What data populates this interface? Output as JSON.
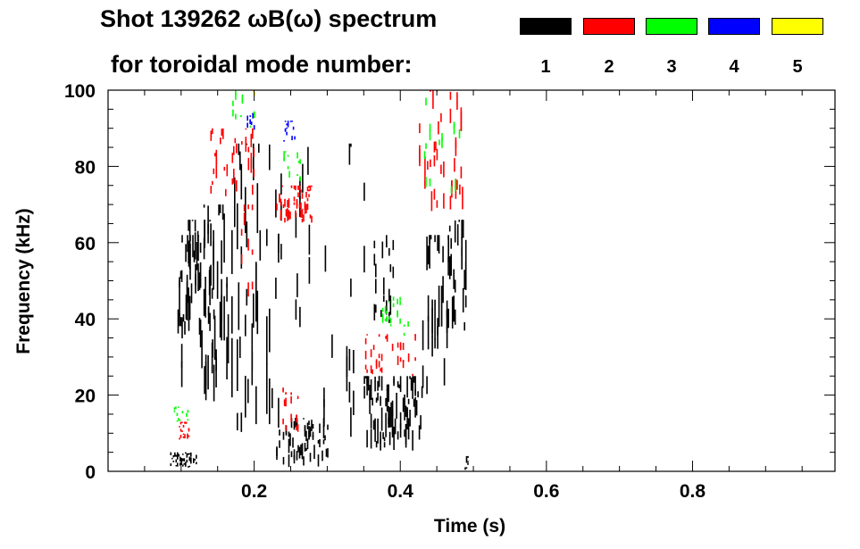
{
  "title_line1": "Shot 139262 ωB(ω) spectrum",
  "title_line2": "for toroidal mode number:",
  "legend": [
    {
      "label": "1",
      "color": "#000000"
    },
    {
      "label": "2",
      "color": "#ff0000"
    },
    {
      "label": "3",
      "color": "#00ff00"
    },
    {
      "label": "4",
      "color": "#0000ff"
    },
    {
      "label": "5",
      "color": "#ffff00"
    }
  ],
  "chart_data": {
    "type": "heatmap",
    "title": "Shot 139262 ωB(ω) spectrum for toroidal mode number",
    "xlabel": "Time (s)",
    "ylabel": "Frequency (kHz)",
    "xlim": [
      0,
      0.995
    ],
    "ylim": [
      0,
      100
    ],
    "xticks": [
      0.2,
      0.4,
      0.6,
      0.8
    ],
    "xtick_labels": [
      "0.2",
      "0.4",
      "0.6",
      "0.8"
    ],
    "yticks": [
      0,
      20,
      40,
      60,
      80,
      100
    ],
    "ytick_labels": [
      "0",
      "20",
      "40",
      "60",
      "80",
      "100"
    ],
    "grid": false,
    "legend_placement": "top",
    "regions": [
      {
        "mode": 1,
        "t": [
          0.095,
          0.125
        ],
        "f": [
          33,
          62
        ],
        "density": 0.9
      },
      {
        "mode": 1,
        "t": [
          0.1,
          0.145
        ],
        "f": [
          18,
          66
        ],
        "density": 0.5
      },
      {
        "mode": 1,
        "t": [
          0.125,
          0.165
        ],
        "f": [
          20,
          70
        ],
        "density": 0.6
      },
      {
        "mode": 1,
        "t": [
          0.165,
          0.225
        ],
        "f": [
          10,
          86
        ],
        "density": 0.45
      },
      {
        "mode": 1,
        "t": [
          0.085,
          0.12
        ],
        "f": [
          1,
          5
        ],
        "density": 0.8
      },
      {
        "mode": 1,
        "t": [
          0.23,
          0.3
        ],
        "f": [
          1,
          14
        ],
        "density": 0.7
      },
      {
        "mode": 1,
        "t": [
          0.225,
          0.35
        ],
        "f": [
          8,
          86
        ],
        "density": 0.15
      },
      {
        "mode": 1,
        "t": [
          0.35,
          0.43
        ],
        "f": [
          5,
          25
        ],
        "density": 0.85
      },
      {
        "mode": 1,
        "t": [
          0.36,
          0.4
        ],
        "f": [
          35,
          62
        ],
        "density": 0.35
      },
      {
        "mode": 1,
        "t": [
          0.43,
          0.465
        ],
        "f": [
          20,
          62
        ],
        "density": 0.6
      },
      {
        "mode": 1,
        "t": [
          0.465,
          0.49
        ],
        "f": [
          35,
          66
        ],
        "density": 0.7
      },
      {
        "mode": 1,
        "t": [
          0.488,
          0.492
        ],
        "f": [
          0,
          4
        ],
        "density": 1.0
      },
      {
        "mode": 2,
        "t": [
          0.14,
          0.2
        ],
        "f": [
          72,
          90
        ],
        "density": 0.5
      },
      {
        "mode": 2,
        "t": [
          0.23,
          0.28
        ],
        "f": [
          65,
          75
        ],
        "density": 0.6
      },
      {
        "mode": 2,
        "t": [
          0.35,
          0.42
        ],
        "f": [
          25,
          36
        ],
        "density": 0.5
      },
      {
        "mode": 2,
        "t": [
          0.42,
          0.49
        ],
        "f": [
          68,
          100
        ],
        "density": 0.4
      },
      {
        "mode": 2,
        "t": [
          0.095,
          0.11
        ],
        "f": [
          8,
          13
        ],
        "density": 0.6
      },
      {
        "mode": 2,
        "t": [
          0.18,
          0.2
        ],
        "f": [
          45,
          70
        ],
        "density": 0.3
      },
      {
        "mode": 2,
        "t": [
          0.235,
          0.26
        ],
        "f": [
          10,
          22
        ],
        "density": 0.4
      },
      {
        "mode": 3,
        "t": [
          0.09,
          0.11
        ],
        "f": [
          13,
          17
        ],
        "density": 0.5
      },
      {
        "mode": 3,
        "t": [
          0.24,
          0.265
        ],
        "f": [
          76,
          84
        ],
        "density": 0.5
      },
      {
        "mode": 3,
        "t": [
          0.17,
          0.2
        ],
        "f": [
          90,
          100
        ],
        "density": 0.4
      },
      {
        "mode": 3,
        "t": [
          0.375,
          0.42
        ],
        "f": [
          35,
          46
        ],
        "density": 0.3
      },
      {
        "mode": 3,
        "t": [
          0.425,
          0.49
        ],
        "f": [
          70,
          98
        ],
        "density": 0.15
      },
      {
        "mode": 4,
        "t": [
          0.19,
          0.2
        ],
        "f": [
          88,
          94
        ],
        "density": 0.6
      },
      {
        "mode": 4,
        "t": [
          0.24,
          0.255
        ],
        "f": [
          86,
          92
        ],
        "density": 0.6
      },
      {
        "mode": 5,
        "t": [
          0.198,
          0.202
        ],
        "f": [
          97,
          100
        ],
        "density": 0.8
      }
    ]
  }
}
